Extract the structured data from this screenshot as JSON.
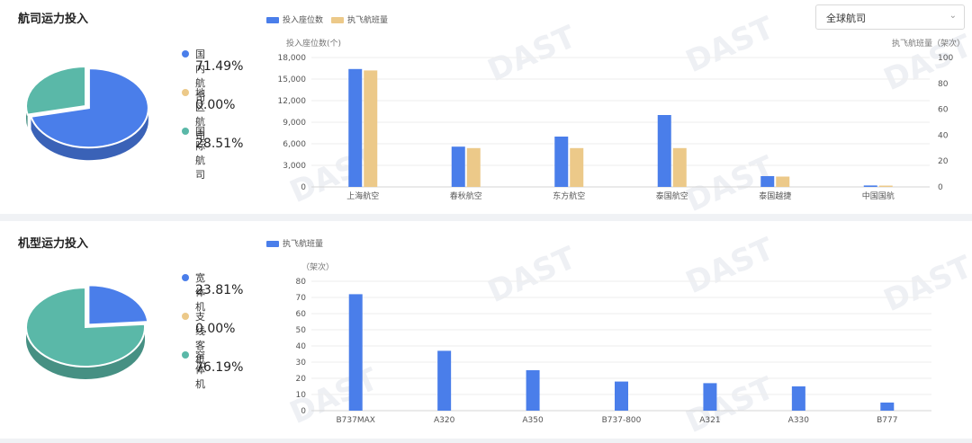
{
  "panel1": {
    "title": "航司运力投入",
    "filter_value": "全球航司",
    "pie_legend": [
      {
        "name": "国内航司",
        "value": "71.49%",
        "color": "#4a7eea"
      },
      {
        "name": "地区航司",
        "value": "0.00%",
        "color": "#ecc989"
      },
      {
        "name": "国际航司",
        "value": "28.51%",
        "color": "#5ab8a8"
      }
    ],
    "pie_fractions": [
      0.7149,
      0.0,
      0.2851
    ],
    "chart_legend": [
      {
        "label": "投入座位数",
        "color": "#4a7eea"
      },
      {
        "label": "执飞航班量",
        "color": "#ecc989"
      }
    ]
  },
  "panel2": {
    "title": "机型运力投入",
    "pie_legend": [
      {
        "name": "宽体机",
        "value": "23.81%",
        "color": "#4a7eea"
      },
      {
        "name": "支线客机",
        "value": "0.00%",
        "color": "#ecc989"
      },
      {
        "name": "窄体机",
        "value": "76.19%",
        "color": "#5ab8a8"
      }
    ],
    "pie_fractions": [
      0.2381,
      0.0,
      0.7619
    ],
    "chart_legend": [
      {
        "label": "执飞航班量",
        "color": "#4a7eea"
      }
    ]
  },
  "chart_data": [
    {
      "type": "bar",
      "categories": [
        "上海航空",
        "春秋航空",
        "东方航空",
        "泰国航空",
        "泰国越捷",
        "中国国航"
      ],
      "series": [
        {
          "name": "投入座位数",
          "values": [
            16400,
            5600,
            7000,
            10000,
            1500,
            200
          ],
          "axis": "left"
        },
        {
          "name": "执飞航班量",
          "values": [
            90,
            30,
            30,
            30,
            8,
            1
          ],
          "axis": "right"
        }
      ],
      "ylabel": "投入座位数(个)",
      "ylabel_right": "执飞航班量（架次）",
      "ylim": [
        0,
        18000
      ],
      "y_ticks": [
        "0",
        "3,000",
        "6,000",
        "9,000",
        "12,000",
        "15,000",
        "18,000"
      ],
      "ylim_right": [
        0,
        100
      ],
      "y_ticks_right": [
        "0",
        "20",
        "40",
        "60",
        "80",
        "100"
      ]
    },
    {
      "type": "bar",
      "categories": [
        "B737MAX",
        "A320",
        "A350",
        "B737-800",
        "A321",
        "A330",
        "B777"
      ],
      "series": [
        {
          "name": "执飞航班量",
          "values": [
            72,
            37,
            25,
            18,
            17,
            15,
            5
          ]
        }
      ],
      "ylabel": "（架次）",
      "ylim": [
        0,
        80
      ],
      "y_ticks": [
        "0",
        "10",
        "20",
        "30",
        "40",
        "50",
        "60",
        "70",
        "80"
      ]
    }
  ]
}
